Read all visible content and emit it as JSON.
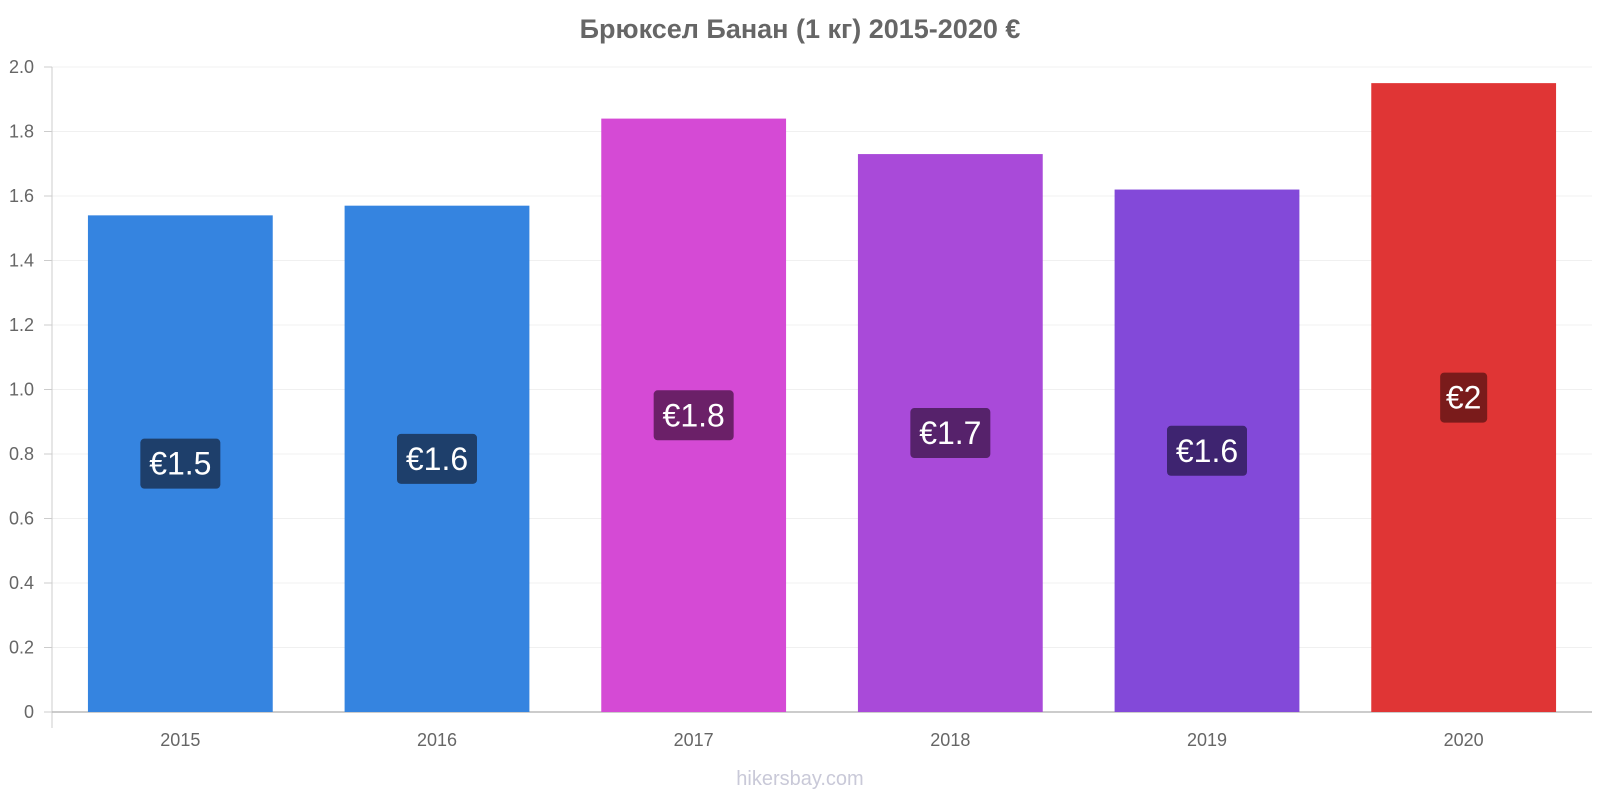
{
  "chart_data": {
    "type": "bar",
    "title": "Брюксел Банан (1 кг) 2015-2020 €",
    "xlabel": "",
    "ylabel": "",
    "ylim": [
      0,
      2.0
    ],
    "yticks": [
      "0",
      "0.2",
      "0.4",
      "0.6",
      "0.8",
      "1.0",
      "1.2",
      "1.4",
      "1.6",
      "1.8",
      "2.0"
    ],
    "categories": [
      "2015",
      "2016",
      "2017",
      "2018",
      "2019",
      "2020"
    ],
    "values": [
      1.54,
      1.57,
      1.84,
      1.73,
      1.62,
      1.95
    ],
    "data_labels": [
      "€1.5",
      "€1.6",
      "€1.8",
      "€1.7",
      "€1.6",
      "€2"
    ],
    "bar_colors": [
      "#3584e0",
      "#3584e0",
      "#d54ad5",
      "#a94ad9",
      "#8349d9",
      "#e03535"
    ],
    "label_bg_colors": [
      "#1e3f6b",
      "#1e3f6b",
      "#6b2068",
      "#56226b",
      "#3e2470",
      "#7a1b1b"
    ],
    "grid": true,
    "legend": "none"
  },
  "watermark": "hikersbay.com"
}
